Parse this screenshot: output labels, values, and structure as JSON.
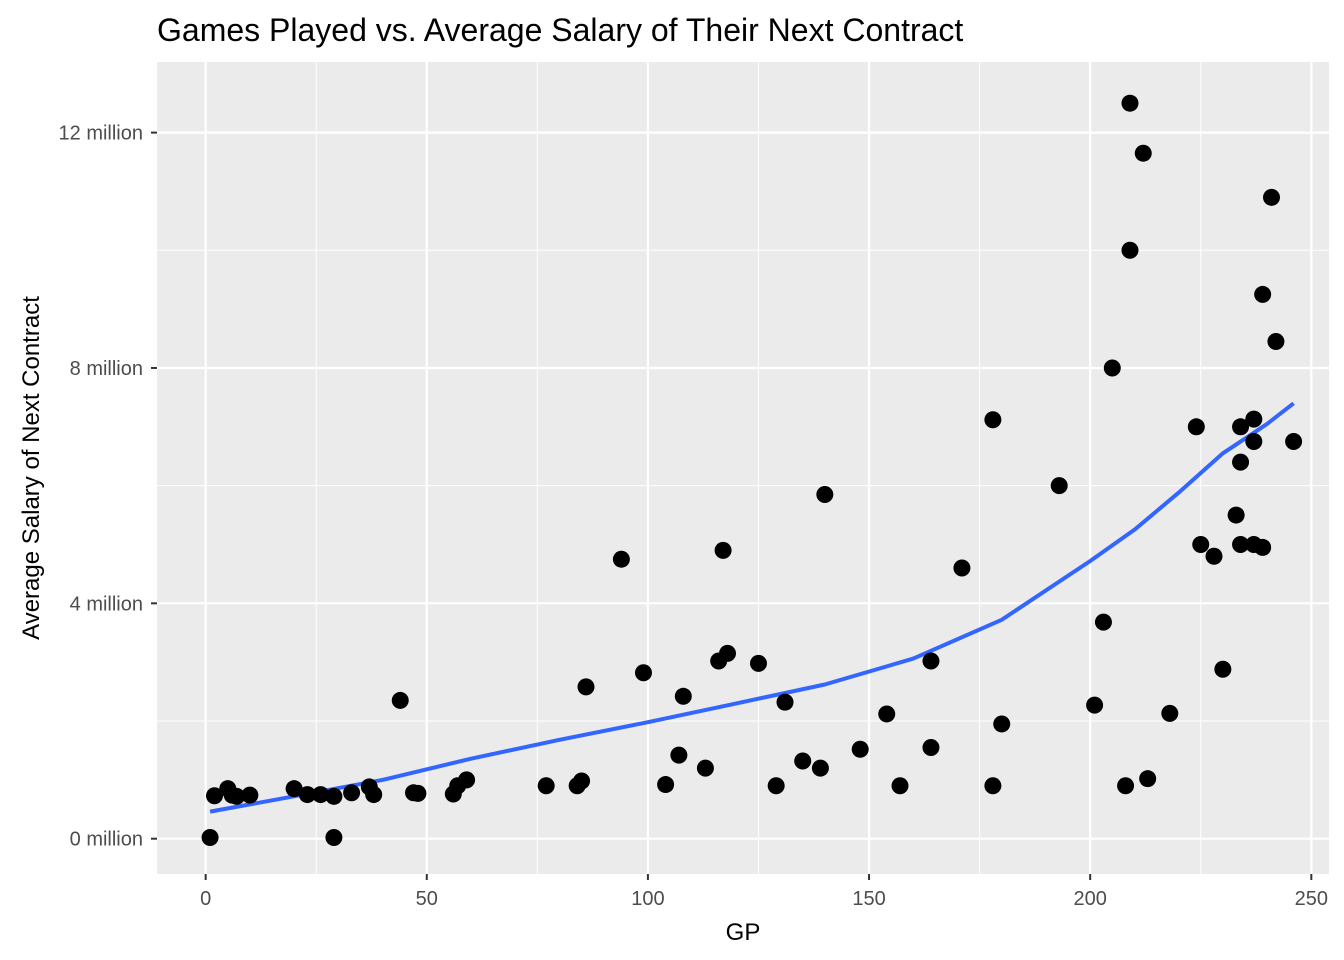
{
  "chart_data": {
    "type": "scatter",
    "title": "Games Played vs. Average Salary of Their Next Contract",
    "xlabel": "GP",
    "ylabel": "Average Salary of Next Contract",
    "xlim": [
      -11,
      254
    ],
    "ylim": [
      -0.6,
      13.2
    ],
    "grid": true,
    "x_ticks": [
      0,
      50,
      100,
      150,
      200,
      250
    ],
    "x_tick_labels": [
      "0",
      "50",
      "100",
      "150",
      "200",
      "250"
    ],
    "y_ticks": [
      0,
      4,
      8,
      12
    ],
    "y_tick_labels": [
      "0 million",
      "4 million",
      "8 million",
      "12 million"
    ],
    "colors": {
      "panel_background": "#ebebeb",
      "grid_major": "#ffffff",
      "points": "#000000",
      "smooth_line": "#3366ff",
      "tick_text": "#4d4d4d"
    },
    "series": [
      {
        "kind": "points",
        "points": [
          [
            1,
            0.02
          ],
          [
            2,
            0.73
          ],
          [
            5,
            0.85
          ],
          [
            6,
            0.74
          ],
          [
            7,
            0.72
          ],
          [
            10,
            0.74
          ],
          [
            20,
            0.85
          ],
          [
            23,
            0.75
          ],
          [
            26,
            0.75
          ],
          [
            29,
            0.72
          ],
          [
            29,
            0.02
          ],
          [
            33,
            0.78
          ],
          [
            37,
            0.88
          ],
          [
            38,
            0.75
          ],
          [
            44,
            2.35
          ],
          [
            47,
            0.78
          ],
          [
            48,
            0.77
          ],
          [
            56,
            0.76
          ],
          [
            57,
            0.9
          ],
          [
            59,
            1.0
          ],
          [
            77,
            0.9
          ],
          [
            84,
            0.9
          ],
          [
            85,
            0.98
          ],
          [
            86,
            2.58
          ],
          [
            94,
            4.75
          ],
          [
            99,
            2.82
          ],
          [
            104,
            0.92
          ],
          [
            107,
            1.42
          ],
          [
            108,
            2.42
          ],
          [
            113,
            1.2
          ],
          [
            116,
            3.02
          ],
          [
            117,
            4.9
          ],
          [
            118,
            3.15
          ],
          [
            125,
            2.98
          ],
          [
            129,
            0.9
          ],
          [
            131,
            2.32
          ],
          [
            135,
            1.32
          ],
          [
            139,
            1.2
          ],
          [
            140,
            5.85
          ],
          [
            148,
            1.52
          ],
          [
            154,
            2.12
          ],
          [
            157,
            0.9
          ],
          [
            164,
            3.02
          ],
          [
            164,
            1.55
          ],
          [
            171,
            4.6
          ],
          [
            178,
            7.12
          ],
          [
            178,
            0.9
          ],
          [
            180,
            1.95
          ],
          [
            193,
            6.0
          ],
          [
            201,
            2.27
          ],
          [
            203,
            3.68
          ],
          [
            205,
            8.0
          ],
          [
            208,
            0.9
          ],
          [
            209,
            12.5
          ],
          [
            209,
            10.0
          ],
          [
            212,
            11.65
          ],
          [
            213,
            1.02
          ],
          [
            218,
            2.13
          ],
          [
            224,
            7.0
          ],
          [
            225,
            5.0
          ],
          [
            228,
            4.8
          ],
          [
            230,
            2.88
          ],
          [
            233,
            5.5
          ],
          [
            234,
            7.0
          ],
          [
            234,
            6.4
          ],
          [
            234,
            5.0
          ],
          [
            237,
            7.13
          ],
          [
            237,
            6.75
          ],
          [
            237,
            5.0
          ],
          [
            239,
            9.25
          ],
          [
            239,
            4.95
          ],
          [
            241,
            10.9
          ],
          [
            242,
            8.45
          ],
          [
            246,
            6.75
          ]
        ]
      },
      {
        "kind": "smooth",
        "points": [
          [
            1,
            0.46
          ],
          [
            20,
            0.72
          ],
          [
            40,
            1.0
          ],
          [
            60,
            1.36
          ],
          [
            80,
            1.68
          ],
          [
            100,
            1.98
          ],
          [
            120,
            2.3
          ],
          [
            140,
            2.62
          ],
          [
            160,
            3.06
          ],
          [
            180,
            3.72
          ],
          [
            200,
            4.72
          ],
          [
            210,
            5.25
          ],
          [
            220,
            5.88
          ],
          [
            230,
            6.55
          ],
          [
            240,
            7.05
          ],
          [
            246,
            7.4
          ]
        ]
      }
    ]
  }
}
